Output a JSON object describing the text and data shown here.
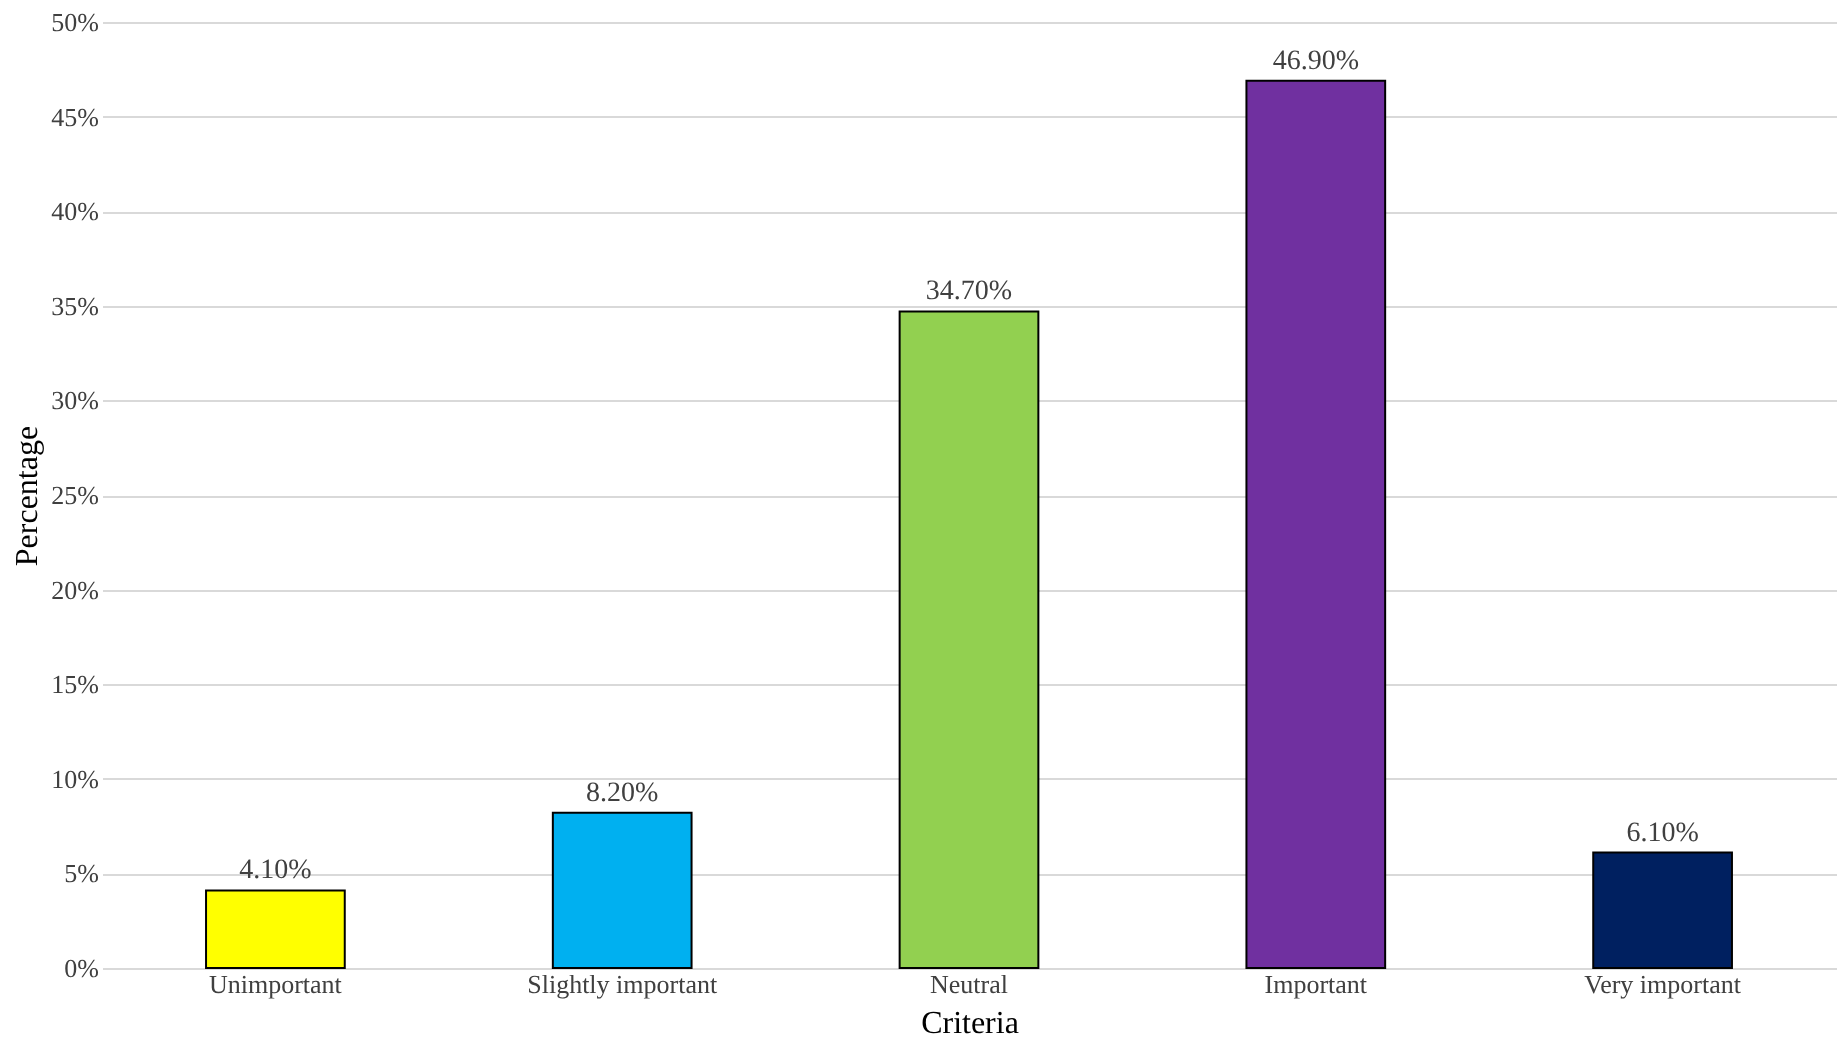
{
  "chart_data": {
    "type": "bar",
    "xlabel": "Criteria",
    "ylabel": "Percentage",
    "categories": [
      "Unimportant",
      "Slightly important",
      "Neutral",
      "Important",
      "Very important"
    ],
    "values": [
      4.1,
      8.2,
      34.7,
      46.9,
      6.1
    ],
    "colors": [
      "#ffff00",
      "#00b0f0",
      "#92d050",
      "#7030a0",
      "#002060"
    ],
    "value_labels": [
      "4.10%",
      "8.20%",
      "34.70%",
      "46.90%",
      "6.10%"
    ],
    "ylim": [
      0,
      50
    ],
    "yticks": [
      {
        "value": 0,
        "label": "0%"
      },
      {
        "value": 5,
        "label": "5%"
      },
      {
        "value": 10,
        "label": "10%"
      },
      {
        "value": 15,
        "label": "15%"
      },
      {
        "value": 20,
        "label": "20%"
      },
      {
        "value": 25,
        "label": "25%"
      },
      {
        "value": 30,
        "label": "30%"
      },
      {
        "value": 35,
        "label": "35%"
      },
      {
        "value": 40,
        "label": "40%"
      },
      {
        "value": 45,
        "label": "45%"
      },
      {
        "value": 50,
        "label": "50%"
      }
    ],
    "grid": "y",
    "legend": false
  }
}
